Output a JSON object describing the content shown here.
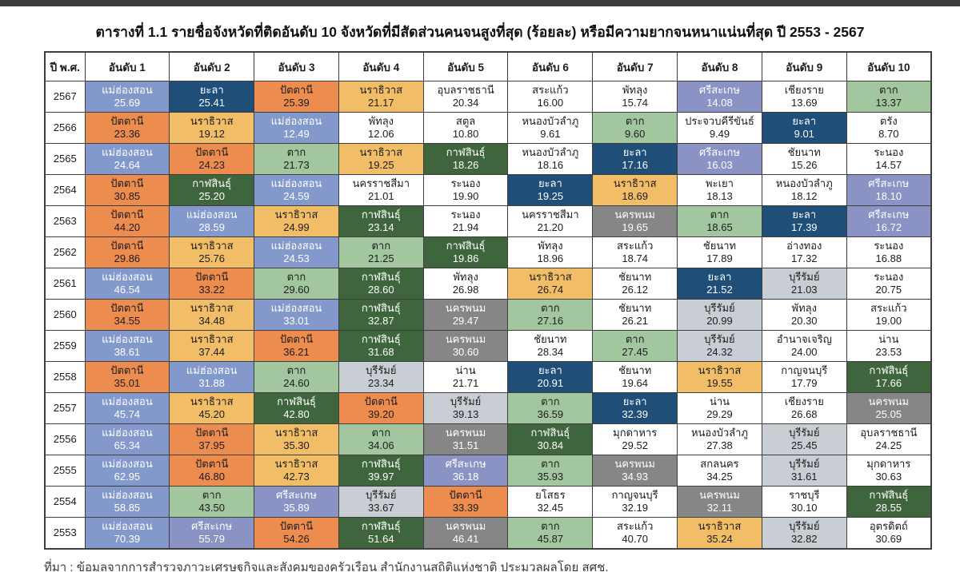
{
  "province_colors": {
    "แม่ฮ่องสอน": {
      "bg": "#8399cb",
      "fg": "#ffffff"
    },
    "ยะลา": {
      "bg": "#1f4e79",
      "fg": "#ffffff"
    },
    "ปัตตานี": {
      "bg": "#ec8c4f",
      "fg": "#1c1c1c"
    },
    "นราธิวาส": {
      "bg": "#f2bd67",
      "fg": "#1c1c1c"
    },
    "ตาก": {
      "bg": "#a2c69d",
      "fg": "#1c1c1c"
    },
    "กาฬสินธุ์": {
      "bg": "#3f653d",
      "fg": "#ffffff"
    },
    "ศรีสะเกษ": {
      "bg": "#8b93c4",
      "fg": "#ffffff"
    },
    "นครพนม": {
      "bg": "#868686",
      "fg": "#ffffff"
    },
    "บุรีรัมย์": {
      "bg": "#c8ced4",
      "fg": "#1c1c1c"
    },
    "default": {
      "bg": "#ffffff",
      "fg": "#1c1c1c"
    }
  },
  "chart_data": {
    "type": "table",
    "title": "ตารางที่ 1.1 รายชื่อจังหวัดที่ติดอันดับ 10 จังหวัดที่มีสัดส่วนคนจนสูงที่สุด (ร้อยละ) หรือมีความยากจนหนาแน่นที่สุด ปี 2553 - 2567",
    "source": "ที่มา :  ข้อมูลจากการสำรวจภาวะเศรษฐกิจและสังคมของครัวเรือน สำนักงานสถิติแห่งชาติ ประมวลผลโดย สศช.",
    "columns": [
      "ปี พ.ศ.",
      "อันดับ 1",
      "อันดับ 2",
      "อันดับ 3",
      "อันดับ 4",
      "อันดับ 5",
      "อันดับ 6",
      "อันดับ 7",
      "อันดับ 8",
      "อันดับ 9",
      "อันดับ 10"
    ],
    "rows": [
      {
        "year": "2567",
        "ranks": [
          {
            "province": "แม่ฮ่องสอน",
            "value": "25.69"
          },
          {
            "province": "ยะลา",
            "value": "25.41"
          },
          {
            "province": "ปัตตานี",
            "value": "25.39"
          },
          {
            "province": "นราธิวาส",
            "value": "21.17"
          },
          {
            "province": "อุบลราชธานี",
            "value": "20.34"
          },
          {
            "province": "สระแก้ว",
            "value": "16.00"
          },
          {
            "province": "พัทลุง",
            "value": "15.74"
          },
          {
            "province": "ศรีสะเกษ",
            "value": "14.08"
          },
          {
            "province": "เชียงราย",
            "value": "13.69"
          },
          {
            "province": "ตาก",
            "value": "13.37"
          }
        ]
      },
      {
        "year": "2566",
        "ranks": [
          {
            "province": "ปัตตานี",
            "value": "23.36"
          },
          {
            "province": "นราธิวาส",
            "value": "19.12"
          },
          {
            "province": "แม่ฮ่องสอน",
            "value": "12.49"
          },
          {
            "province": "พัทลุง",
            "value": "12.06"
          },
          {
            "province": "สตูล",
            "value": "10.80"
          },
          {
            "province": "หนองบัวลำภู",
            "value": "9.61"
          },
          {
            "province": "ตาก",
            "value": "9.60"
          },
          {
            "province": "ประจวบคีรีขันธ์",
            "value": "9.49"
          },
          {
            "province": "ยะลา",
            "value": "9.01"
          },
          {
            "province": "ตรัง",
            "value": "8.70"
          }
        ]
      },
      {
        "year": "2565",
        "ranks": [
          {
            "province": "แม่ฮ่องสอน",
            "value": "24.64"
          },
          {
            "province": "ปัตตานี",
            "value": "24.23"
          },
          {
            "province": "ตาก",
            "value": "21.73"
          },
          {
            "province": "นราธิวาส",
            "value": "19.25"
          },
          {
            "province": "กาฬสินธุ์",
            "value": "18.26"
          },
          {
            "province": "หนองบัวลำภู",
            "value": "18.16"
          },
          {
            "province": "ยะลา",
            "value": "17.16"
          },
          {
            "province": "ศรีสะเกษ",
            "value": "16.03"
          },
          {
            "province": "ชัยนาท",
            "value": "15.26"
          },
          {
            "province": "ระนอง",
            "value": "14.57"
          }
        ]
      },
      {
        "year": "2564",
        "ranks": [
          {
            "province": "ปัตตานี",
            "value": "30.85"
          },
          {
            "province": "กาฬสินธุ์",
            "value": "25.20"
          },
          {
            "province": "แม่ฮ่องสอน",
            "value": "24.59"
          },
          {
            "province": "นครราชสีมา",
            "value": "21.01"
          },
          {
            "province": "ระนอง",
            "value": "19.90"
          },
          {
            "province": "ยะลา",
            "value": "19.25"
          },
          {
            "province": "นราธิวาส",
            "value": "18.69"
          },
          {
            "province": "พะเยา",
            "value": "18.13"
          },
          {
            "province": "หนองบัวลำภู",
            "value": "18.12"
          },
          {
            "province": "ศรีสะเกษ",
            "value": "18.10"
          }
        ]
      },
      {
        "year": "2563",
        "ranks": [
          {
            "province": "ปัตตานี",
            "value": "44.20"
          },
          {
            "province": "แม่ฮ่องสอน",
            "value": "28.59"
          },
          {
            "province": "นราธิวาส",
            "value": "24.99"
          },
          {
            "province": "กาฬสินธุ์",
            "value": "23.14"
          },
          {
            "province": "ระนอง",
            "value": "21.94"
          },
          {
            "province": "นครราชสีมา",
            "value": "21.20"
          },
          {
            "province": "นครพนม",
            "value": "19.65"
          },
          {
            "province": "ตาก",
            "value": "18.65"
          },
          {
            "province": "ยะลา",
            "value": "17.39"
          },
          {
            "province": "ศรีสะเกษ",
            "value": "16.72"
          }
        ]
      },
      {
        "year": "2562",
        "ranks": [
          {
            "province": "ปัตตานี",
            "value": "29.86"
          },
          {
            "province": "นราธิวาส",
            "value": "25.76"
          },
          {
            "province": "แม่ฮ่องสอน",
            "value": "24.53"
          },
          {
            "province": "ตาก",
            "value": "21.25"
          },
          {
            "province": "กาฬสินธุ์",
            "value": "19.86"
          },
          {
            "province": "พัทลุง",
            "value": "18.96"
          },
          {
            "province": "สระแก้ว",
            "value": "18.74"
          },
          {
            "province": "ชัยนาท",
            "value": "17.89"
          },
          {
            "province": "อ่างทอง",
            "value": "17.32"
          },
          {
            "province": "ระนอง",
            "value": "16.88"
          }
        ]
      },
      {
        "year": "2561",
        "ranks": [
          {
            "province": "แม่ฮ่องสอน",
            "value": "46.54"
          },
          {
            "province": "ปัตตานี",
            "value": "33.22"
          },
          {
            "province": "ตาก",
            "value": "29.60"
          },
          {
            "province": "กาฬสินธุ์",
            "value": "28.60"
          },
          {
            "province": "พัทลุง",
            "value": "26.98"
          },
          {
            "province": "นราธิวาส",
            "value": "26.74"
          },
          {
            "province": "ชัยนาท",
            "value": "26.12"
          },
          {
            "province": "ยะลา",
            "value": "21.52"
          },
          {
            "province": "บุรีรัมย์",
            "value": "21.03"
          },
          {
            "province": "ระนอง",
            "value": "20.75"
          }
        ]
      },
      {
        "year": "2560",
        "ranks": [
          {
            "province": "ปัตตานี",
            "value": "34.55"
          },
          {
            "province": "นราธิวาส",
            "value": "34.48"
          },
          {
            "province": "แม่ฮ่องสอน",
            "value": "33.01"
          },
          {
            "province": "กาฬสินธุ์",
            "value": "32.87"
          },
          {
            "province": "นครพนม",
            "value": "29.47"
          },
          {
            "province": "ตาก",
            "value": "27.16"
          },
          {
            "province": "ชัยนาท",
            "value": "26.21"
          },
          {
            "province": "บุรีรัมย์",
            "value": "20.99"
          },
          {
            "province": "พัทลุง",
            "value": "20.30"
          },
          {
            "province": "สระแก้ว",
            "value": "19.00"
          }
        ]
      },
      {
        "year": "2559",
        "ranks": [
          {
            "province": "แม่ฮ่องสอน",
            "value": "38.61"
          },
          {
            "province": "นราธิวาส",
            "value": "37.44"
          },
          {
            "province": "ปัตตานี",
            "value": "36.21"
          },
          {
            "province": "กาฬสินธุ์",
            "value": "31.68"
          },
          {
            "province": "นครพนม",
            "value": "30.60"
          },
          {
            "province": "ชัยนาท",
            "value": "28.34"
          },
          {
            "province": "ตาก",
            "value": "27.45"
          },
          {
            "province": "บุรีรัมย์",
            "value": "24.32"
          },
          {
            "province": "อำนาจเจริญ",
            "value": "24.00"
          },
          {
            "province": "น่าน",
            "value": "23.53"
          }
        ]
      },
      {
        "year": "2558",
        "ranks": [
          {
            "province": "ปัตตานี",
            "value": "35.01"
          },
          {
            "province": "แม่ฮ่องสอน",
            "value": "31.88"
          },
          {
            "province": "ตาก",
            "value": "24.60"
          },
          {
            "province": "บุรีรัมย์",
            "value": "23.34"
          },
          {
            "province": "น่าน",
            "value": "21.71"
          },
          {
            "province": "ยะลา",
            "value": "20.91"
          },
          {
            "province": "ชัยนาท",
            "value": "19.64"
          },
          {
            "province": "นราธิวาส",
            "value": "19.55"
          },
          {
            "province": "กาญจนบุรี",
            "value": "17.79"
          },
          {
            "province": "กาฬสินธุ์",
            "value": "17.66"
          }
        ]
      },
      {
        "year": "2557",
        "ranks": [
          {
            "province": "แม่ฮ่องสอน",
            "value": "45.74"
          },
          {
            "province": "นราธิวาส",
            "value": "45.20"
          },
          {
            "province": "กาฬสินธุ์",
            "value": "42.80"
          },
          {
            "province": "ปัตตานี",
            "value": "39.20"
          },
          {
            "province": "บุรีรัมย์",
            "value": "39.13"
          },
          {
            "province": "ตาก",
            "value": "36.59"
          },
          {
            "province": "ยะลา",
            "value": "32.39"
          },
          {
            "province": "น่าน",
            "value": "29.29"
          },
          {
            "province": "เชียงราย",
            "value": "26.68"
          },
          {
            "province": "นครพนม",
            "value": "25.05"
          }
        ]
      },
      {
        "year": "2556",
        "ranks": [
          {
            "province": "แม่ฮ่องสอน",
            "value": "65.34"
          },
          {
            "province": "ปัตตานี",
            "value": "37.95"
          },
          {
            "province": "นราธิวาส",
            "value": "35.30"
          },
          {
            "province": "ตาก",
            "value": "34.06"
          },
          {
            "province": "นครพนม",
            "value": "31.51"
          },
          {
            "province": "กาฬสินธุ์",
            "value": "30.84"
          },
          {
            "province": "มุกดาหาร",
            "value": "29.52"
          },
          {
            "province": "หนองบัวลำภู",
            "value": "27.38"
          },
          {
            "province": "บุรีรัมย์",
            "value": "25.45"
          },
          {
            "province": "อุบลราชธานี",
            "value": "24.25"
          }
        ]
      },
      {
        "year": "2555",
        "ranks": [
          {
            "province": "แม่ฮ่องสอน",
            "value": "62.95"
          },
          {
            "province": "ปัตตานี",
            "value": "46.80"
          },
          {
            "province": "นราธิวาส",
            "value": "42.73"
          },
          {
            "province": "กาฬสินธุ์",
            "value": "39.97"
          },
          {
            "province": "ศรีสะเกษ",
            "value": "36.18"
          },
          {
            "province": "ตาก",
            "value": "35.93"
          },
          {
            "province": "นครพนม",
            "value": "34.93"
          },
          {
            "province": "สกลนคร",
            "value": "34.25"
          },
          {
            "province": "บุรีรัมย์",
            "value": "31.61"
          },
          {
            "province": "มุกดาหาร",
            "value": "30.63"
          }
        ]
      },
      {
        "year": "2554",
        "ranks": [
          {
            "province": "แม่ฮ่องสอน",
            "value": "58.85"
          },
          {
            "province": "ตาก",
            "value": "43.50"
          },
          {
            "province": "ศรีสะเกษ",
            "value": "35.89"
          },
          {
            "province": "บุรีรัมย์",
            "value": "33.67"
          },
          {
            "province": "ปัตตานี",
            "value": "33.39"
          },
          {
            "province": "ยโสธร",
            "value": "32.45"
          },
          {
            "province": "กาญจนบุรี",
            "value": "32.19"
          },
          {
            "province": "นครพนม",
            "value": "32.11"
          },
          {
            "province": "ราชบุรี",
            "value": "30.10"
          },
          {
            "province": "กาฬสินธุ์",
            "value": "28.55"
          }
        ]
      },
      {
        "year": "2553",
        "ranks": [
          {
            "province": "แม่ฮ่องสอน",
            "value": "70.39"
          },
          {
            "province": "ศรีสะเกษ",
            "value": "55.79"
          },
          {
            "province": "ปัตตานี",
            "value": "54.26"
          },
          {
            "province": "กาฬสินธุ์",
            "value": "51.64"
          },
          {
            "province": "นครพนม",
            "value": "46.41"
          },
          {
            "province": "ตาก",
            "value": "45.87"
          },
          {
            "province": "สระแก้ว",
            "value": "40.70"
          },
          {
            "province": "นราธิวาส",
            "value": "35.24"
          },
          {
            "province": "บุรีรัมย์",
            "value": "32.82"
          },
          {
            "province": "อุตรดิตถ์",
            "value": "30.69"
          }
        ]
      }
    ]
  }
}
